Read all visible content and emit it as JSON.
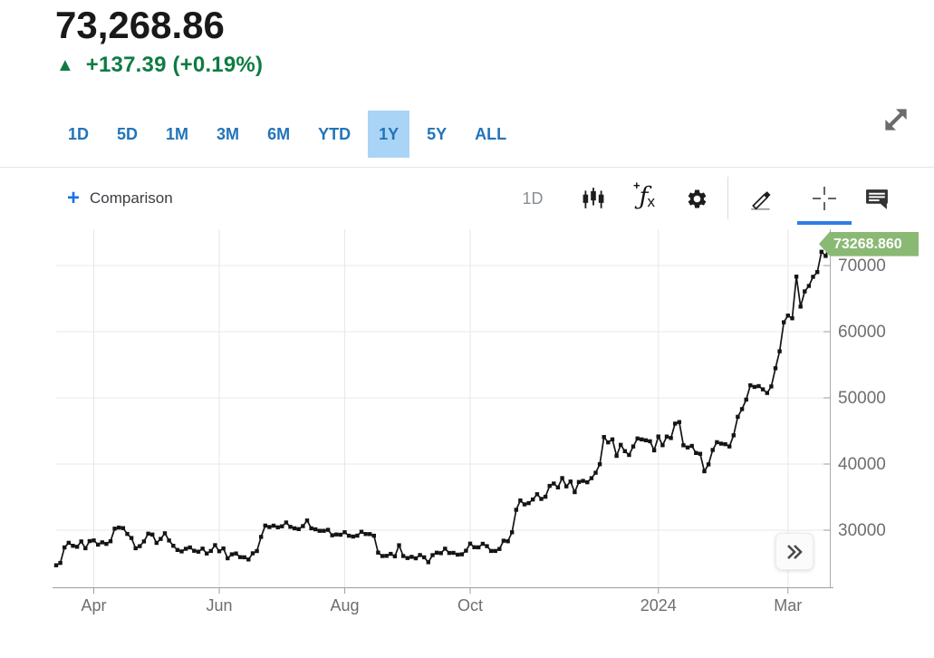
{
  "header": {
    "price": "73,268.86",
    "up_triangle": "▲",
    "change_text": "+137.39 (+0.19%)",
    "direction": "up",
    "change_color": "#0e7c43"
  },
  "range_tabs": {
    "items": [
      {
        "label": "1D",
        "selected": false
      },
      {
        "label": "5D",
        "selected": false
      },
      {
        "label": "1M",
        "selected": false
      },
      {
        "label": "3M",
        "selected": false
      },
      {
        "label": "6M",
        "selected": false
      },
      {
        "label": "YTD",
        "selected": false
      },
      {
        "label": "1Y",
        "selected": true
      },
      {
        "label": "5Y",
        "selected": false
      },
      {
        "label": "ALL",
        "selected": false
      }
    ],
    "selected_bg": "#a9d4f5",
    "text_color": "#2274ba"
  },
  "toolbar": {
    "plus": "+",
    "comparison_label": "Comparison",
    "interval_label": "1D",
    "fx_plus": "+",
    "fx_f": "ƒ",
    "fx_x": "x",
    "icons": [
      "candlestick-chart-icon",
      "function-fx-icon",
      "settings-gear-icon",
      "draw-pencil-icon",
      "crosshair-icon",
      "annotation-comment-icon"
    ],
    "active_tool": "crosshair",
    "active_underline_color": "#2e7ee5"
  },
  "chart": {
    "last_price_label": "73268.860",
    "badge_color": "#8ab973",
    "expand_button_icon": "double-chevron-right",
    "expand_icon": "fullscreen-diagonal-arrows"
  },
  "chart_data": {
    "type": "line",
    "title": "",
    "xlabel": "",
    "ylabel": "",
    "grid": true,
    "legend": "none",
    "line_color": "#141414",
    "marker": "square",
    "last_value": 73268.86,
    "ylim": [
      21370,
      75480
    ],
    "y_ticks": [
      30000,
      40000,
      50000,
      60000,
      70000
    ],
    "x_ticks": [
      {
        "f": 0.0486,
        "label": "Apr"
      },
      {
        "f": 0.2108,
        "label": "Jun"
      },
      {
        "f": 0.373,
        "label": "Aug"
      },
      {
        "f": 0.5351,
        "label": "Oct"
      },
      {
        "f": 0.7784,
        "label": "2024"
      },
      {
        "f": 0.9459,
        "label": "Mar"
      }
    ],
    "series": [
      {
        "name": "price",
        "values": [
          24700,
          25050,
          27400,
          28100,
          27650,
          27500,
          28300,
          27270,
          28350,
          28450,
          27820,
          28170,
          27930,
          28330,
          30230,
          30400,
          30310,
          29440,
          28820,
          27270,
          27590,
          28300,
          29480,
          29340,
          28080,
          28680,
          29530,
          28450,
          27650,
          27010,
          26800,
          27190,
          27400,
          26890,
          26750,
          27225,
          26480,
          26870,
          27745,
          26820,
          27250,
          25750,
          26350,
          26480,
          25930,
          25900,
          25575,
          26510,
          26850,
          28990,
          30700,
          30480,
          30690,
          30440,
          30590,
          31160,
          30510,
          30290,
          30170,
          30610,
          31460,
          30290,
          30140,
          29910,
          29910,
          30060,
          29230,
          29350,
          29320,
          29700,
          29170,
          29040,
          29180,
          29765,
          29430,
          29415,
          29170,
          26620,
          26100,
          26120,
          26430,
          26050,
          27720,
          26100,
          25800,
          25970,
          25750,
          26250,
          25900,
          25160,
          26230,
          26600,
          26530,
          27210,
          26565,
          26580,
          26300,
          26355,
          26910,
          27970,
          27430,
          27410,
          27950,
          27590,
          26870,
          26865,
          27160,
          28415,
          28330,
          29680,
          33085,
          34500,
          33910,
          34090,
          34650,
          35440,
          34730,
          35050,
          36700,
          37055,
          36460,
          37880,
          36625,
          37360,
          35755,
          37290,
          37450,
          37245,
          37860,
          38690,
          39970,
          44080,
          43270,
          43720,
          41240,
          42900,
          41940,
          41365,
          42660,
          43870,
          43720,
          43595,
          43445,
          42075,
          44170,
          42845,
          44145,
          43935,
          46110,
          46340,
          42840,
          42510,
          42745,
          41665,
          41545,
          38905,
          39945,
          42120,
          43300,
          43080,
          43000,
          42660,
          44340,
          47140,
          48295,
          49740,
          51900,
          51660,
          51780,
          51285,
          50735,
          51730,
          54475,
          57040,
          61425,
          62440,
          62030,
          68330,
          63800,
          66100,
          66925,
          68300,
          69020,
          72080,
          71450,
          73268.86
        ]
      }
    ]
  }
}
